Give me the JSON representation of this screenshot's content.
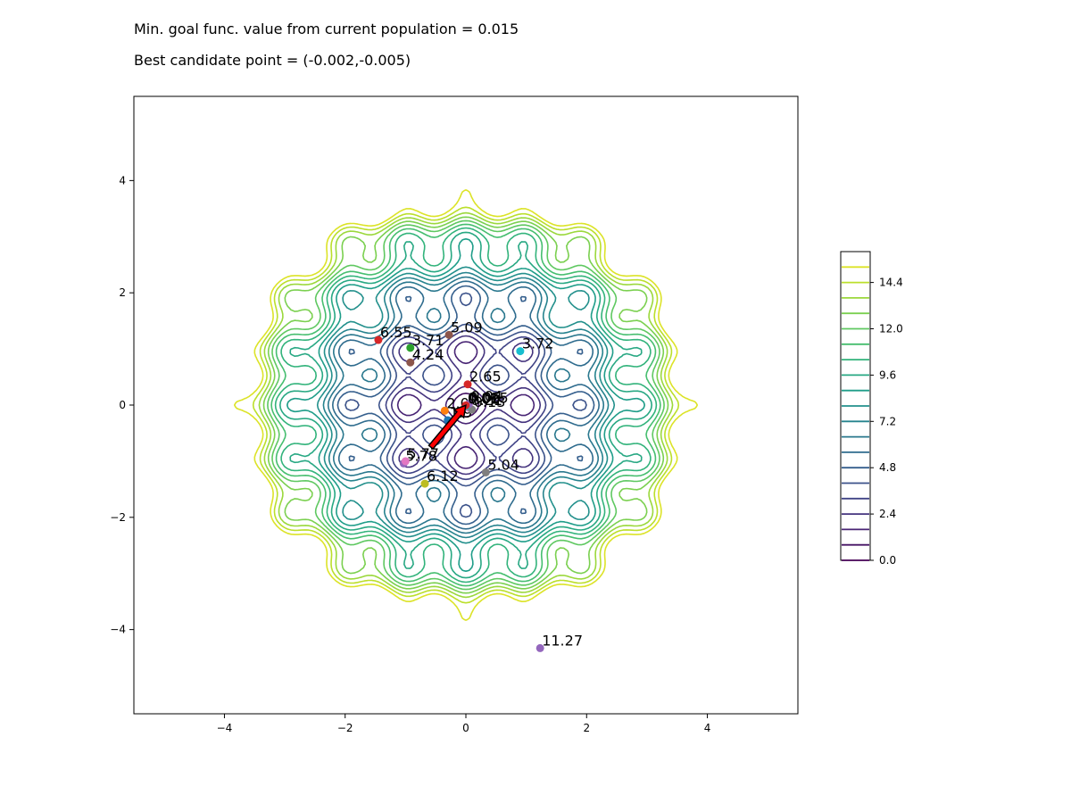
{
  "header": {
    "line1": "Min. goal func. value from current population = 0.015",
    "line2": "Best candidate point = (-0.002,-0.005)"
  },
  "chart_data": {
    "type": "scatter",
    "background": "contour",
    "contour_function": "rastrigin-like",
    "xlim": [
      -5.5,
      5.5
    ],
    "ylim": [
      -5.5,
      5.5
    ],
    "x_ticks": [
      -4,
      -2,
      0,
      2,
      4
    ],
    "y_ticks": [
      -4,
      -2,
      0,
      2,
      4
    ],
    "x_tick_labels": [
      "−4",
      "−2",
      "0",
      "2",
      "4"
    ],
    "y_tick_labels": [
      "−4",
      "−2",
      "0",
      "2",
      "4"
    ],
    "grid": false,
    "colorbar": {
      "ticks": [
        0.0,
        2.4,
        4.8,
        7.2,
        9.6,
        12.0,
        14.4
      ],
      "tick_labels": [
        "0.0",
        "2.4",
        "4.8",
        "7.2",
        "9.6",
        "12.0",
        "14.4"
      ],
      "levels": [
        0.0,
        0.8,
        1.6,
        2.4,
        3.2,
        4.0,
        4.8,
        5.6,
        6.4,
        7.2,
        8.0,
        8.8,
        9.6,
        10.4,
        11.2,
        12.0,
        12.8,
        13.6,
        14.4,
        15.2
      ],
      "range": [
        0.0,
        16.0
      ]
    },
    "points": [
      {
        "x": -1.45,
        "y": 1.16,
        "label": "6.55",
        "color": "#d62728"
      },
      {
        "x": -0.92,
        "y": 1.02,
        "label": "3.71",
        "color": "#2ca02c"
      },
      {
        "x": -0.92,
        "y": 0.76,
        "label": "4.24",
        "color": "#8c564b"
      },
      {
        "x": -0.28,
        "y": 1.25,
        "label": "5.09",
        "color": "#8c564b"
      },
      {
        "x": 0.9,
        "y": 0.96,
        "label": "3.72",
        "color": "#17becf"
      },
      {
        "x": 0.03,
        "y": 0.37,
        "label": "2.65",
        "color": "#d62728"
      },
      {
        "x": -0.35,
        "y": -0.1,
        "label": "2.0",
        "color": "#ff7f0e"
      },
      {
        "x": -0.3,
        "y": -0.27,
        "label": "1.9",
        "color": "#1f77b4"
      },
      {
        "x": 0.05,
        "y": -0.05,
        "label": "0.21",
        "color": "#e377c2"
      },
      {
        "x": 0.1,
        "y": -0.08,
        "label": "0.13",
        "color": "#7f7f7f"
      },
      {
        "x": 0.02,
        "y": 0.0,
        "label": "0.06",
        "color": "#bcbd22"
      },
      {
        "x": 0.05,
        "y": 0.02,
        "label": "0.04",
        "color": "#9467bd"
      },
      {
        "x": 0.0,
        "y": -0.02,
        "label": "0.02",
        "color": "#17becf"
      },
      {
        "x": -0.002,
        "y": -0.005,
        "label": "0.015",
        "color": "#d62728"
      },
      {
        "x": -1.03,
        "y": -1.04,
        "label": "5.78",
        "color": "#9467bd"
      },
      {
        "x": -1.0,
        "y": -1.0,
        "label": "5.77",
        "color": "#e377c2"
      },
      {
        "x": 0.33,
        "y": -1.2,
        "label": "5.04",
        "color": "#7f7f7f"
      },
      {
        "x": -0.68,
        "y": -1.4,
        "label": "6.12",
        "color": "#bcbd22"
      },
      {
        "x": 1.23,
        "y": -4.33,
        "label": "11.27",
        "color": "#9467bd"
      }
    ],
    "arrow": {
      "from": [
        -0.58,
        -0.75
      ],
      "to": [
        -0.002,
        -0.005
      ],
      "color": "#ff0000"
    }
  }
}
